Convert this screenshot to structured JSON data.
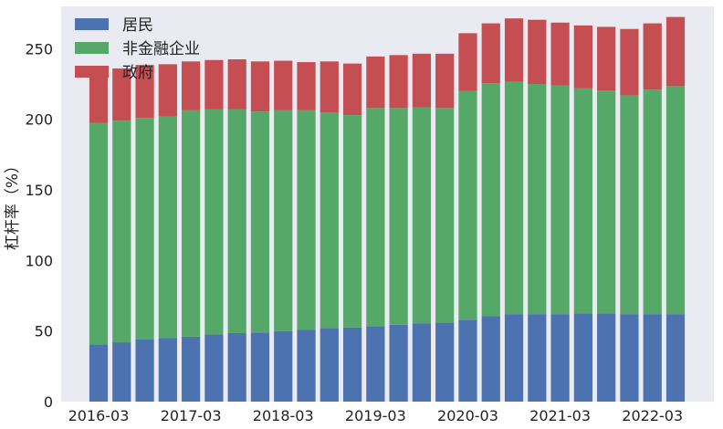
{
  "chart_data": {
    "type": "bar",
    "stacked": true,
    "title": "",
    "xlabel": "",
    "ylabel": "杠杆率（%）",
    "ylim": [
      0,
      280
    ],
    "yticks": [
      0,
      50,
      100,
      150,
      200,
      250
    ],
    "grid": false,
    "legend": "top-left",
    "background": "#eaeaf2",
    "categories": [
      "2016-03",
      "2016-06",
      "2016-09",
      "2016-12",
      "2017-03",
      "2017-06",
      "2017-09",
      "2017-12",
      "2018-03",
      "2018-06",
      "2018-09",
      "2018-12",
      "2019-03",
      "2019-06",
      "2019-09",
      "2019-12",
      "2020-03",
      "2020-06",
      "2020-09",
      "2020-12",
      "2021-03",
      "2021-06",
      "2021-09",
      "2021-12",
      "2022-03",
      "2022-06"
    ],
    "xtick_labels": [
      "2016-03",
      "2017-03",
      "2018-03",
      "2019-03",
      "2020-03",
      "2021-03",
      "2022-03"
    ],
    "series": [
      {
        "name": "居民",
        "color": "#4c72b0",
        "values": [
          40.5,
          42,
          44,
          45,
          46,
          47.5,
          48.5,
          49,
          50,
          51,
          52,
          52.5,
          53.5,
          54.5,
          55.5,
          56,
          58,
          60.5,
          62,
          62,
          62,
          62.5,
          62.5,
          62,
          62,
          62
        ]
      },
      {
        "name": "非金融企业",
        "color": "#55a868",
        "values": [
          157,
          157,
          157,
          157,
          160.5,
          159.5,
          158.5,
          156.5,
          156.5,
          155.5,
          153,
          150.5,
          154.5,
          153.5,
          153,
          152,
          162,
          165,
          164.5,
          163,
          162,
          159.5,
          158,
          155,
          159,
          161.5
        ]
      },
      {
        "name": "政府",
        "color": "#c44e52",
        "values": [
          38.5,
          37,
          37.5,
          37,
          34.5,
          35,
          35.5,
          35.5,
          35,
          34,
          36,
          36.5,
          36.5,
          37.5,
          38,
          38.5,
          41,
          42.5,
          45,
          45.5,
          44.5,
          44.5,
          45,
          47,
          47,
          49
        ]
      }
    ]
  }
}
